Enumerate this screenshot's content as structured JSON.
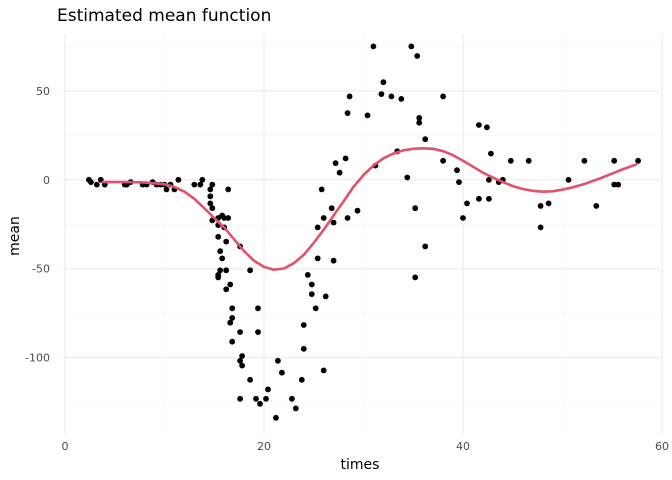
{
  "chart_data": {
    "type": "scatter",
    "title": "Estimated mean function",
    "xlabel": "times",
    "ylabel": "mean",
    "xlim": [
      -0.2,
      59.8
    ],
    "ylim": [
      -143,
      82
    ],
    "x_ticks": [
      0,
      20,
      40,
      60
    ],
    "y_ticks": [
      -100,
      -50,
      0,
      50
    ],
    "x_tick_labels": [
      "0",
      "20",
      "40",
      "60"
    ],
    "y_tick_labels": [
      "-100",
      "-50",
      "0",
      "50"
    ],
    "x_minor_ticks": [
      10,
      30,
      50
    ],
    "y_minor_ticks": [
      -125,
      -75,
      -25,
      25,
      75
    ],
    "grid": true,
    "theme": "minimal",
    "colors": {
      "points": "#000000",
      "curve": "#DF536B",
      "grid": "#ebebeb"
    },
    "series": [
      {
        "kind": "points",
        "points": [
          [
            2.4,
            0.0
          ],
          [
            2.6,
            -1.3
          ],
          [
            3.2,
            -2.7
          ],
          [
            3.6,
            0.0
          ],
          [
            4.0,
            -2.7
          ],
          [
            6.0,
            -2.7
          ],
          [
            6.2,
            -2.7
          ],
          [
            6.6,
            -1.3
          ],
          [
            7.8,
            -2.7
          ],
          [
            8.2,
            -2.7
          ],
          [
            8.8,
            -1.3
          ],
          [
            9.2,
            -2.7
          ],
          [
            9.6,
            -2.7
          ],
          [
            10.0,
            -2.7
          ],
          [
            10.2,
            -5.4
          ],
          [
            10.6,
            -2.7
          ],
          [
            11.0,
            -5.4
          ],
          [
            11.4,
            0.0
          ],
          [
            13.0,
            -2.7
          ],
          [
            13.6,
            -2.7
          ],
          [
            13.8,
            0.0
          ],
          [
            14.6,
            -5.4
          ],
          [
            14.6,
            -9.3
          ],
          [
            14.6,
            -13.3
          ],
          [
            14.8,
            -2.7
          ],
          [
            14.8,
            -16.0
          ],
          [
            14.8,
            -22.8
          ],
          [
            15.4,
            -21.5
          ],
          [
            15.4,
            -25.5
          ],
          [
            15.4,
            -32.1
          ],
          [
            15.4,
            -53.5
          ],
          [
            15.4,
            -54.9
          ],
          [
            15.6,
            -40.2
          ],
          [
            15.6,
            -50.9
          ],
          [
            15.8,
            -20.1
          ],
          [
            15.8,
            -44.2
          ],
          [
            16.0,
            -21.5
          ],
          [
            16.0,
            -26.8
          ],
          [
            16.2,
            -34.8
          ],
          [
            16.2,
            -50.9
          ],
          [
            16.2,
            -61.6
          ],
          [
            16.4,
            -5.4
          ],
          [
            16.4,
            -21.5
          ],
          [
            16.6,
            -58.9
          ],
          [
            16.6,
            -80.4
          ],
          [
            16.8,
            -72.3
          ],
          [
            16.8,
            -77.7
          ],
          [
            16.8,
            -91.1
          ],
          [
            17.6,
            -37.5
          ],
          [
            17.6,
            -85.7
          ],
          [
            17.6,
            -101.8
          ],
          [
            17.6,
            -123.2
          ],
          [
            17.8,
            -99.1
          ],
          [
            17.8,
            -104.5
          ],
          [
            18.6,
            -50.9
          ],
          [
            18.6,
            -112.5
          ],
          [
            19.2,
            -123.2
          ],
          [
            19.4,
            -72.3
          ],
          [
            19.4,
            -85.7
          ],
          [
            19.6,
            -126.0
          ],
          [
            20.2,
            -123.2
          ],
          [
            20.4,
            -117.9
          ],
          [
            21.2,
            -133.9
          ],
          [
            21.4,
            -101.8
          ],
          [
            21.8,
            -108.5
          ],
          [
            22.8,
            -123.2
          ],
          [
            23.2,
            -128.6
          ],
          [
            23.8,
            -112.5
          ],
          [
            24.0,
            -81.7
          ],
          [
            24.0,
            -95.1
          ],
          [
            24.4,
            -53.5
          ],
          [
            24.8,
            -58.9
          ],
          [
            24.8,
            -64.3
          ],
          [
            25.2,
            -72.3
          ],
          [
            25.4,
            -44.2
          ],
          [
            25.4,
            -26.8
          ],
          [
            25.8,
            -5.4
          ],
          [
            26.0,
            -21.5
          ],
          [
            26.0,
            -107.2
          ],
          [
            26.2,
            -65.6
          ],
          [
            26.8,
            -16.0
          ],
          [
            27.0,
            -45.5
          ],
          [
            27.0,
            -24.1
          ],
          [
            27.2,
            9.3
          ],
          [
            27.6,
            4.0
          ],
          [
            28.2,
            12.0
          ],
          [
            28.4,
            37.5
          ],
          [
            28.4,
            -21.5
          ],
          [
            28.6,
            46.9
          ],
          [
            29.4,
            -17.4
          ],
          [
            30.4,
            36.2
          ],
          [
            31.0,
            75.0
          ],
          [
            31.2,
            8.0
          ],
          [
            31.8,
            48.2
          ],
          [
            32.0,
            54.9
          ],
          [
            32.8,
            46.9
          ],
          [
            33.4,
            16.0
          ],
          [
            33.8,
            45.5
          ],
          [
            34.4,
            1.3
          ],
          [
            34.8,
            75.0
          ],
          [
            35.2,
            -16.0
          ],
          [
            35.2,
            -54.9
          ],
          [
            35.4,
            69.6
          ],
          [
            35.6,
            34.8
          ],
          [
            35.6,
            32.1
          ],
          [
            36.2,
            22.8
          ],
          [
            36.2,
            -37.5
          ],
          [
            38.0,
            10.7
          ],
          [
            38.0,
            46.9
          ],
          [
            39.4,
            5.4
          ],
          [
            39.6,
            -1.3
          ],
          [
            40.0,
            -21.5
          ],
          [
            40.4,
            -13.3
          ],
          [
            41.6,
            30.8
          ],
          [
            41.6,
            -10.7
          ],
          [
            42.4,
            29.5
          ],
          [
            42.6,
            0.0
          ],
          [
            42.6,
            -10.7
          ],
          [
            42.8,
            14.7
          ],
          [
            43.6,
            -1.3
          ],
          [
            44.0,
            0.0
          ],
          [
            44.8,
            10.7
          ],
          [
            46.6,
            10.7
          ],
          [
            47.8,
            -26.8
          ],
          [
            47.8,
            -14.7
          ],
          [
            48.6,
            -13.3
          ],
          [
            50.6,
            0.0
          ],
          [
            52.2,
            10.7
          ],
          [
            53.4,
            -14.7
          ],
          [
            55.2,
            10.7
          ],
          [
            55.2,
            -2.7
          ],
          [
            55.6,
            -2.7
          ],
          [
            57.6,
            10.7
          ]
        ]
      },
      {
        "kind": "line",
        "points": [
          [
            3.8,
            -1.3
          ],
          [
            6.0,
            -1.3
          ],
          [
            8.0,
            -1.5
          ],
          [
            10.0,
            -2.5
          ],
          [
            11.0,
            -4.0
          ],
          [
            12.0,
            -6.7
          ],
          [
            13.0,
            -10.7
          ],
          [
            14.0,
            -16.0
          ],
          [
            15.0,
            -21.5
          ],
          [
            16.0,
            -26.8
          ],
          [
            17.0,
            -33.5
          ],
          [
            18.0,
            -40.2
          ],
          [
            19.0,
            -45.5
          ],
          [
            20.0,
            -49.0
          ],
          [
            21.0,
            -50.6
          ],
          [
            22.0,
            -49.9
          ],
          [
            23.0,
            -46.9
          ],
          [
            24.0,
            -42.2
          ],
          [
            25.0,
            -35.5
          ],
          [
            26.0,
            -28.1
          ],
          [
            27.0,
            -20.1
          ],
          [
            28.0,
            -12.1
          ],
          [
            29.0,
            -4.0
          ],
          [
            30.0,
            2.7
          ],
          [
            31.0,
            8.0
          ],
          [
            32.0,
            12.1
          ],
          [
            33.0,
            14.7
          ],
          [
            34.0,
            16.5
          ],
          [
            35.0,
            17.4
          ],
          [
            36.0,
            17.7
          ],
          [
            37.0,
            17.4
          ],
          [
            38.0,
            16.1
          ],
          [
            39.0,
            13.8
          ],
          [
            40.0,
            10.7
          ],
          [
            41.0,
            7.4
          ],
          [
            42.0,
            4.0
          ],
          [
            43.0,
            1.3
          ],
          [
            44.0,
            -1.3
          ],
          [
            45.0,
            -3.5
          ],
          [
            46.0,
            -5.2
          ],
          [
            47.0,
            -6.2
          ],
          [
            48.0,
            -6.7
          ],
          [
            49.0,
            -6.5
          ],
          [
            50.0,
            -5.6
          ],
          [
            51.0,
            -4.3
          ],
          [
            52.0,
            -2.7
          ],
          [
            53.0,
            -0.8
          ],
          [
            54.0,
            1.3
          ],
          [
            55.0,
            3.5
          ],
          [
            56.0,
            5.8
          ],
          [
            57.4,
            8.6
          ]
        ]
      }
    ]
  }
}
